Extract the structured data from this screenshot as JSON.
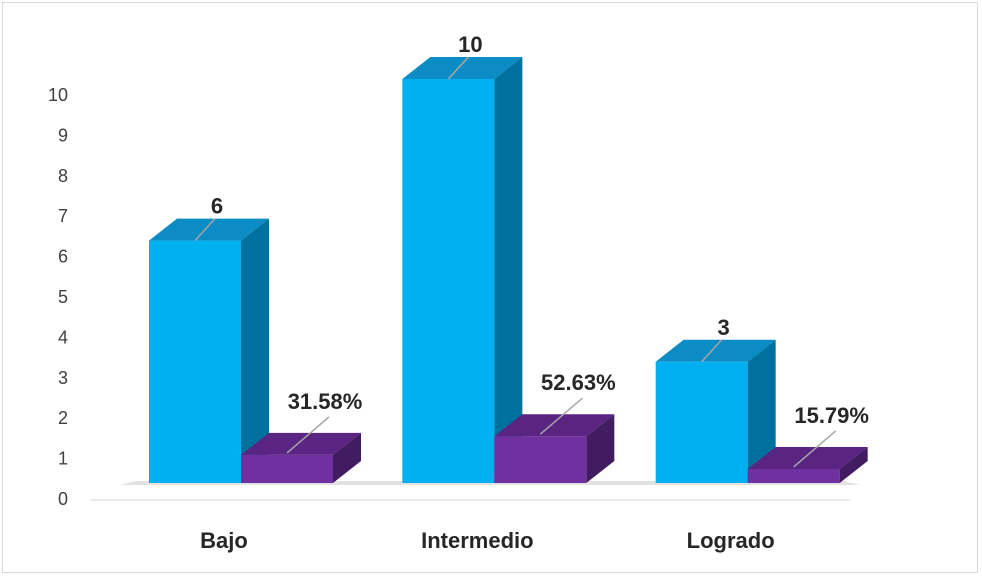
{
  "chart_data": {
    "type": "bar",
    "title": "",
    "xlabel": "",
    "ylabel": "",
    "categories": [
      "Bajo",
      "Intermedio",
      "Logrado"
    ],
    "ylim": [
      0,
      10
    ],
    "yticks": [
      0,
      1,
      2,
      3,
      4,
      5,
      6,
      7,
      8,
      9,
      10
    ],
    "grid": false,
    "legend": "none",
    "style": "3d-column",
    "series": [
      {
        "values": [
          6,
          10,
          3
        ],
        "labels": [
          "6",
          "10",
          "3"
        ],
        "color_front": "#00B0F0",
        "color_top": "#0B8CC4",
        "color_side": "#00719E"
      },
      {
        "values": [
          0.3158,
          0.5263,
          0.1579
        ],
        "labels": [
          "31.58%",
          "52.63%",
          "15.79%"
        ],
        "color_front": "#7030A0",
        "color_top": "#5A2582",
        "color_side": "#421C60"
      }
    ]
  }
}
